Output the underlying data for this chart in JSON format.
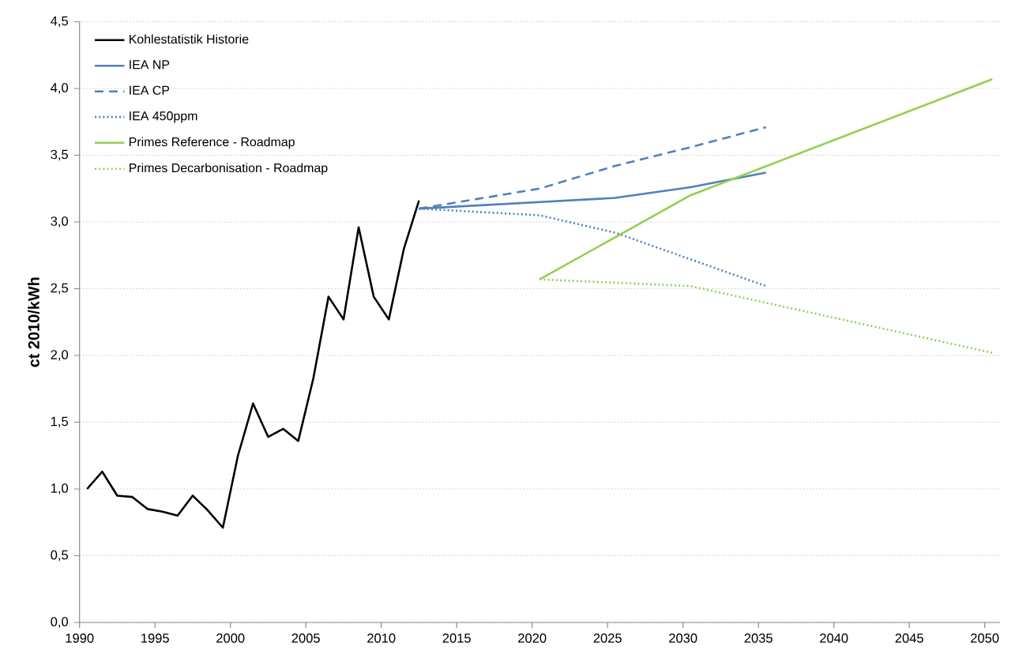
{
  "chart_data": {
    "type": "line",
    "ylabel": "ct 2010/kWh",
    "xlim": [
      1990,
      2051
    ],
    "xticks": [
      1990,
      1995,
      2000,
      2005,
      2010,
      2015,
      2020,
      2025,
      2030,
      2035,
      2040,
      2045,
      2050
    ],
    "ylim": [
      0,
      4.5
    ],
    "yticks": [
      {
        "value": 0,
        "label": "0,0"
      },
      {
        "value": 0.5,
        "label": "0,5"
      },
      {
        "value": 1,
        "label": "1,0"
      },
      {
        "value": 1.5,
        "label": "1,5"
      },
      {
        "value": 2,
        "label": "2,0"
      },
      {
        "value": 2.5,
        "label": "2,5"
      },
      {
        "value": 3,
        "label": "3,0"
      },
      {
        "value": 3.5,
        "label": "3,5"
      },
      {
        "value": 4,
        "label": "4,0"
      },
      {
        "value": 4.5,
        "label": "4,5"
      }
    ],
    "grid": "y",
    "legend": "top left",
    "marker": "none",
    "series": [
      {
        "name": "Kohlestatistik Historie",
        "color": "#000000",
        "line_style": "solid",
        "x": [
          1990.5,
          1991.5,
          1992.5,
          1993.5,
          1994.5,
          1995.5,
          1996.5,
          1997.5,
          1998.5,
          1999.5,
          2000.5,
          2001.5,
          2002.5,
          2003.5,
          2004.5,
          2005.5,
          2006.5,
          2007.5,
          2008.5,
          2009.5,
          2010.5,
          2011.5,
          2012.5
        ],
        "values": [
          1.0,
          1.13,
          0.95,
          0.94,
          0.85,
          0.83,
          0.8,
          0.95,
          0.84,
          0.71,
          1.25,
          1.64,
          1.39,
          1.45,
          1.36,
          1.83,
          2.44,
          2.27,
          2.96,
          2.44,
          2.27,
          2.8,
          3.16
        ]
      },
      {
        "name": "IEA NP",
        "color": "#4f81bd",
        "line_style": "solid",
        "x": [
          2012.5,
          2025.5,
          2030.5,
          2035.5
        ],
        "values": [
          3.1,
          3.18,
          3.26,
          3.37
        ]
      },
      {
        "name": "IEA CP",
        "color": "#4f81bd",
        "line_style": "dashed",
        "x": [
          2012.5,
          2020.5,
          2025.5,
          2030.5,
          2035.5
        ],
        "values": [
          3.1,
          3.25,
          3.42,
          3.56,
          3.71
        ]
      },
      {
        "name": "IEA 450ppm",
        "color": "#4f81bd",
        "line_style": "dotted",
        "x": [
          2012.5,
          2020.5,
          2025.5,
          2030.5,
          2035.5
        ],
        "values": [
          3.1,
          3.05,
          2.92,
          2.72,
          2.52
        ]
      },
      {
        "name": "Primes Reference - Roadmap",
        "color": "#92d050",
        "line_style": "solid",
        "x": [
          2020.5,
          2030.5,
          2050.5
        ],
        "values": [
          2.57,
          3.2,
          4.07
        ]
      },
      {
        "name": "Primes Decarbonisation - Roadmap",
        "color": "#92d050",
        "line_style": "dotted",
        "x": [
          2020.5,
          2030.5,
          2050.5
        ],
        "values": [
          2.57,
          2.52,
          2.02
        ]
      }
    ]
  }
}
